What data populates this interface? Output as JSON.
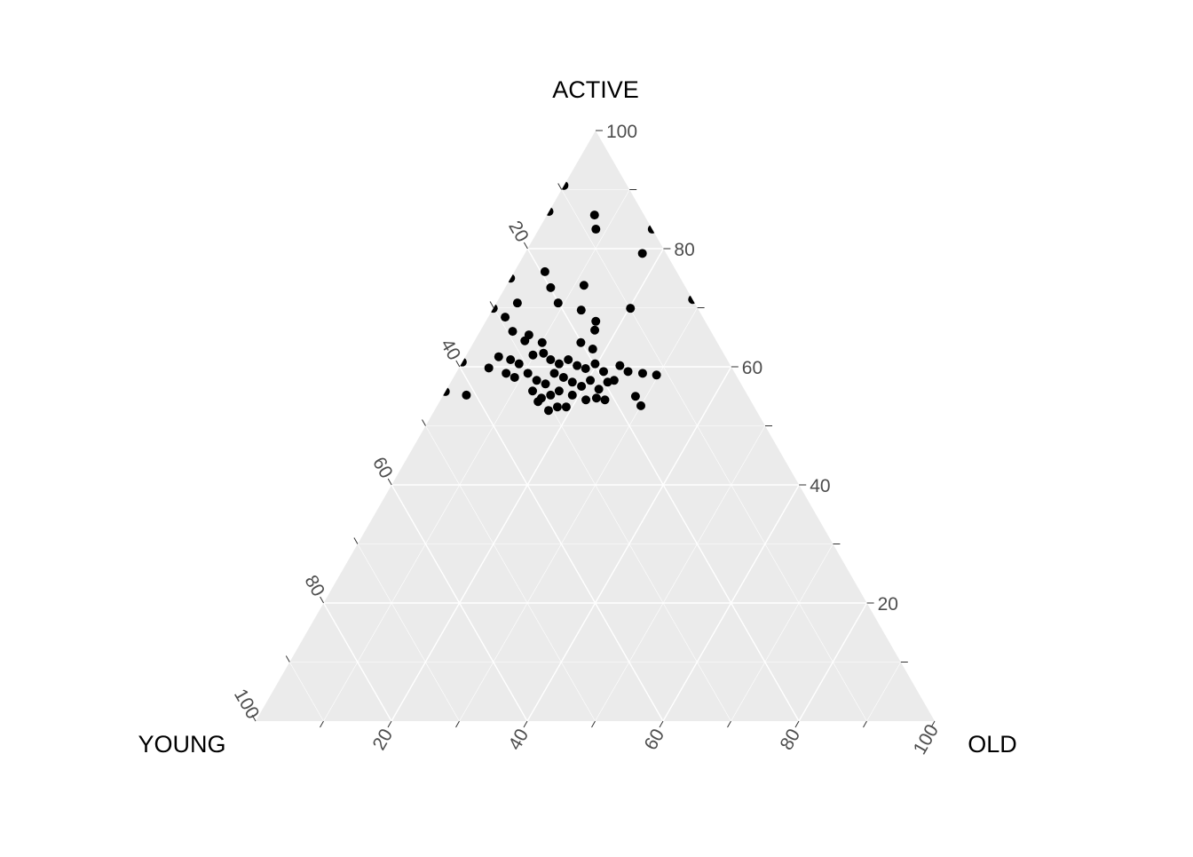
{
  "chart_data": {
    "type": "scatter",
    "subtype": "ternary",
    "axes": {
      "top": {
        "label": "ACTIVE",
        "ticks": [
          "20",
          "40",
          "60",
          "80",
          "100"
        ]
      },
      "left": {
        "label": "YOUNG",
        "ticks": [
          "20",
          "40",
          "60",
          "80",
          "100"
        ]
      },
      "right": {
        "label": "OLD",
        "ticks": [
          "20",
          "40",
          "60",
          "80",
          "100"
        ]
      }
    },
    "range": [
      0,
      100
    ],
    "grid": true,
    "major_step": 20,
    "minor_step": 10,
    "background_color": "#ebebeb",
    "grid_color": "#ffffff",
    "point_color": "#000000",
    "points": [
      {
        "ACTIVE": 85.7,
        "YOUNG": 7.3,
        "OLD": 7.0
      },
      {
        "ACTIVE": 83.3,
        "YOUNG": 8.3,
        "OLD": 8.4
      },
      {
        "ACTIVE": 79.2,
        "YOUNG": 3.5,
        "OLD": 17.3
      },
      {
        "ACTIVE": 76.1,
        "YOUNG": 19.4,
        "OLD": 4.5
      },
      {
        "ACTIVE": 73.4,
        "YOUNG": 19.9,
        "OLD": 6.7
      },
      {
        "ACTIVE": 73.8,
        "YOUNG": 14.8,
        "OLD": 11.4
      },
      {
        "ACTIVE": 70.8,
        "YOUNG": 20.1,
        "OLD": 9.1
      },
      {
        "ACTIVE": 69.6,
        "YOUNG": 17.3,
        "OLD": 13.1
      },
      {
        "ACTIVE": 69.9,
        "YOUNG": 9.9,
        "OLD": 20.2
      },
      {
        "ACTIVE": 68.4,
        "YOUNG": 29.1,
        "OLD": 2.5
      },
      {
        "ACTIVE": 70.8,
        "YOUNG": 26.1,
        "OLD": 3.1
      },
      {
        "ACTIVE": 67.7,
        "YOUNG": 16.1,
        "OLD": 16.2
      },
      {
        "ACTIVE": 66.2,
        "YOUNG": 17.0,
        "OLD": 16.8
      },
      {
        "ACTIVE": 66.0,
        "YOUNG": 29.2,
        "OLD": 4.8
      },
      {
        "ACTIVE": 65.4,
        "YOUNG": 27.1,
        "OLD": 7.5
      },
      {
        "ACTIVE": 64.4,
        "YOUNG": 28.2,
        "OLD": 7.4
      },
      {
        "ACTIVE": 64.1,
        "YOUNG": 25.8,
        "OLD": 10.1
      },
      {
        "ACTIVE": 64.1,
        "YOUNG": 20.1,
        "OLD": 15.8
      },
      {
        "ACTIVE": 63.0,
        "YOUNG": 18.9,
        "OLD": 18.1
      },
      {
        "ACTIVE": 59.8,
        "YOUNG": 35.8,
        "OLD": 4.4
      },
      {
        "ACTIVE": 61.7,
        "YOUNG": 33.4,
        "OLD": 4.9
      },
      {
        "ACTIVE": 61.2,
        "YOUNG": 31.9,
        "OLD": 6.9
      },
      {
        "ACTIVE": 60.5,
        "YOUNG": 31.0,
        "OLD": 8.5
      },
      {
        "ACTIVE": 62.0,
        "YOUNG": 28.2,
        "OLD": 9.8
      },
      {
        "ACTIVE": 62.3,
        "YOUNG": 26.5,
        "OLD": 11.2
      },
      {
        "ACTIVE": 61.2,
        "YOUNG": 26.0,
        "OLD": 12.8
      },
      {
        "ACTIVE": 60.5,
        "YOUNG": 25.1,
        "OLD": 14.4
      },
      {
        "ACTIVE": 61.2,
        "YOUNG": 23.4,
        "OLD": 15.4
      },
      {
        "ACTIVE": 60.2,
        "YOUNG": 22.6,
        "OLD": 17.2
      },
      {
        "ACTIVE": 59.7,
        "YOUNG": 21.6,
        "OLD": 18.7
      },
      {
        "ACTIVE": 60.5,
        "YOUNG": 19.8,
        "OLD": 19.7
      },
      {
        "ACTIVE": 59.2,
        "YOUNG": 19.2,
        "OLD": 21.6
      },
      {
        "ACTIVE": 60.2,
        "YOUNG": 16.3,
        "OLD": 23.5
      },
      {
        "ACTIVE": 59.2,
        "YOUNG": 15.6,
        "OLD": 25.2
      },
      {
        "ACTIVE": 58.9,
        "YOUNG": 13.6,
        "OLD": 27.5
      },
      {
        "ACTIVE": 58.6,
        "YOUNG": 11.7,
        "OLD": 29.7
      },
      {
        "ACTIVE": 58.9,
        "YOUNG": 33.7,
        "OLD": 7.4
      },
      {
        "ACTIVE": 58.2,
        "YOUNG": 32.8,
        "OLD": 9.0
      },
      {
        "ACTIVE": 58.9,
        "YOUNG": 30.5,
        "OLD": 10.6
      },
      {
        "ACTIVE": 57.7,
        "YOUNG": 29.8,
        "OLD": 12.5
      },
      {
        "ACTIVE": 57.1,
        "YOUNG": 28.8,
        "OLD": 14.1
      },
      {
        "ACTIVE": 58.9,
        "YOUNG": 26.6,
        "OLD": 14.5
      },
      {
        "ACTIVE": 58.2,
        "YOUNG": 25.6,
        "OLD": 16.2
      },
      {
        "ACTIVE": 57.4,
        "YOUNG": 24.7,
        "OLD": 17.9
      },
      {
        "ACTIVE": 56.7,
        "YOUNG": 23.7,
        "OLD": 19.6
      },
      {
        "ACTIVE": 57.7,
        "YOUNG": 21.9,
        "OLD": 20.4
      },
      {
        "ACTIVE": 56.2,
        "YOUNG": 21.4,
        "OLD": 22.4
      },
      {
        "ACTIVE": 57.4,
        "YOUNG": 19.5,
        "OLD": 23.1
      },
      {
        "ACTIVE": 57.7,
        "YOUNG": 18.4,
        "OLD": 23.9
      },
      {
        "ACTIVE": 55.9,
        "YOUNG": 31.3,
        "OLD": 12.8
      },
      {
        "ACTIVE": 54.7,
        "YOUNG": 30.6,
        "OLD": 14.7
      },
      {
        "ACTIVE": 55.2,
        "YOUNG": 29.0,
        "OLD": 15.8
      },
      {
        "ACTIVE": 55.9,
        "YOUNG": 27.4,
        "OLD": 16.7
      },
      {
        "ACTIVE": 55.2,
        "YOUNG": 25.8,
        "OLD": 19.0
      },
      {
        "ACTIVE": 54.4,
        "YOUNG": 24.2,
        "OLD": 21.4
      },
      {
        "ACTIVE": 54.7,
        "YOUNG": 22.5,
        "OLD": 22.8
      },
      {
        "ACTIVE": 54.4,
        "YOUNG": 21.4,
        "OLD": 24.2
      },
      {
        "ACTIVE": 54.1,
        "YOUNG": 31.4,
        "OLD": 14.5
      },
      {
        "ACTIVE": 52.6,
        "YOUNG": 30.6,
        "OLD": 16.8
      },
      {
        "ACTIVE": 53.2,
        "YOUNG": 29.0,
        "OLD": 17.8
      },
      {
        "ACTIVE": 53.2,
        "YOUNG": 27.7,
        "OLD": 19.1
      },
      {
        "ACTIVE": 55.0,
        "YOUNG": 16.6,
        "OLD": 28.4
      },
      {
        "ACTIVE": 53.4,
        "YOUNG": 16.6,
        "OLD": 30.0
      },
      {
        "ACTIVE": 55.2,
        "YOUNG": 41.4,
        "OLD": 3.4
      },
      {
        "ACTIVE": 90.7,
        "YOUNG": 9.3,
        "OLD": 0
      },
      {
        "ACTIVE": 86.3,
        "YOUNG": 13.7,
        "OLD": 0
      },
      {
        "ACTIVE": 75.0,
        "YOUNG": 25.0,
        "OLD": 0
      },
      {
        "ACTIVE": 69.9,
        "YOUNG": 30.1,
        "OLD": 0
      },
      {
        "ACTIVE": 60.8,
        "YOUNG": 39.2,
        "OLD": 0
      },
      {
        "ACTIVE": 55.8,
        "YOUNG": 44.2,
        "OLD": 0
      },
      {
        "ACTIVE": 83.3,
        "YOUNG": 0,
        "OLD": 16.7
      },
      {
        "ACTIVE": 71.4,
        "YOUNG": 0,
        "OLD": 28.6
      }
    ]
  }
}
